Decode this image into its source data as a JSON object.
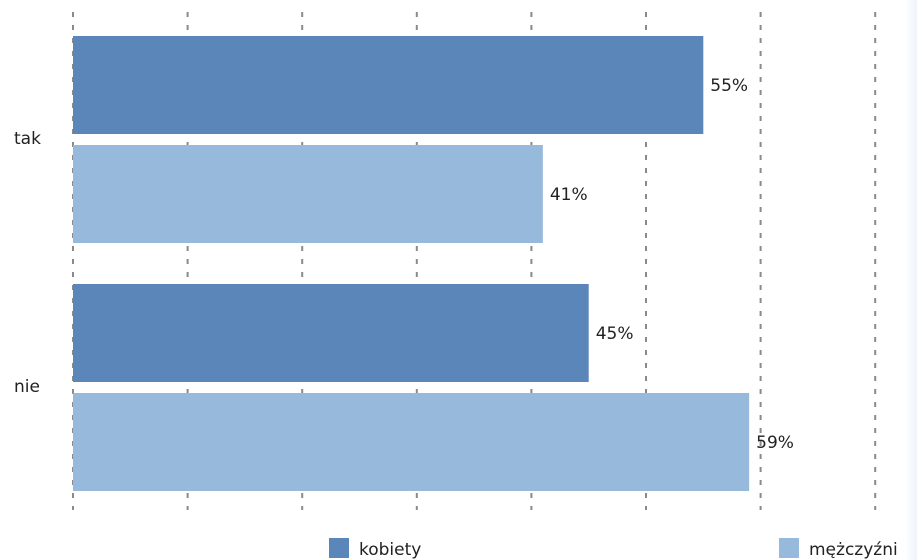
{
  "chart_data": {
    "type": "bar",
    "orientation": "horizontal",
    "categories": [
      "tak",
      "nie"
    ],
    "series": [
      {
        "name": "kobiety",
        "values": [
          55,
          45
        ],
        "labels": [
          "55%",
          "45%"
        ],
        "color": "#5b86b9"
      },
      {
        "name": "mężczyźni",
        "values": [
          41,
          59
        ],
        "labels": [
          "41%",
          "59%"
        ],
        "color": "#97b9dc"
      }
    ],
    "xlim": [
      0,
      70
    ],
    "grid": true,
    "legend_position": "bottom"
  }
}
